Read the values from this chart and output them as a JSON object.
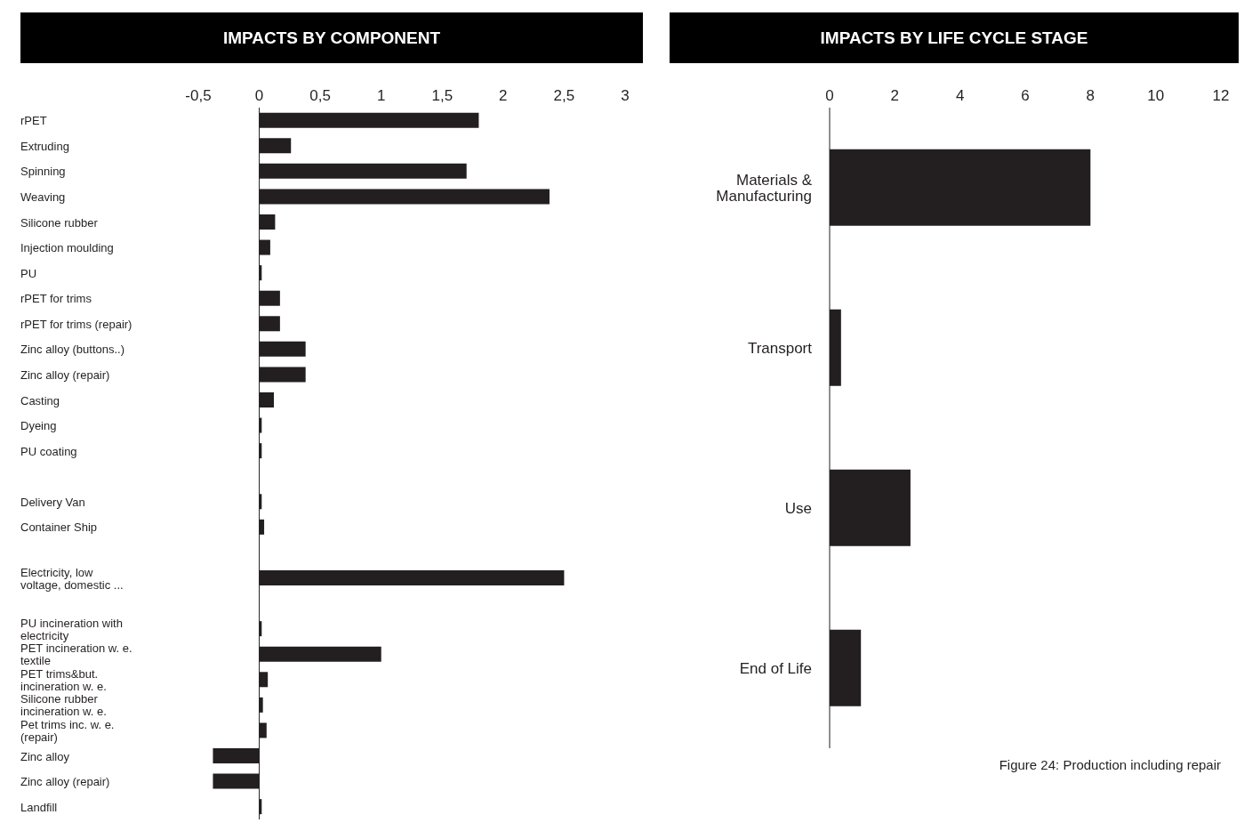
{
  "chart_data": [
    {
      "type": "bar",
      "orientation": "horizontal",
      "title": "IMPACTS BY COMPONENT",
      "categories": [
        "rPET",
        "Extruding",
        "Spinning",
        "Weaving",
        "Silicone rubber",
        "Injection moulding",
        "PU",
        "rPET for trims",
        "rPET for trims (repair)",
        "Zinc alloy (buttons..)",
        "Zinc alloy (repair)",
        "Casting",
        "Dyeing",
        "PU coating",
        null,
        "Delivery Van",
        "Container Ship",
        null,
        "Electricity, low voltage, domestic ...",
        null,
        "PU incineration with electricity",
        "PET incineration w. e. textile",
        "PET trims&but. incineration w. e.",
        "Silicone rubber incineration w. e.",
        "Pet trims inc. w. e. (repair)",
        "Zinc alloy",
        "Zinc alloy (repair)",
        "Landfill"
      ],
      "values": [
        1.8,
        0.26,
        1.7,
        2.38,
        0.13,
        0.09,
        0.02,
        0.17,
        0.17,
        0.38,
        0.38,
        0.12,
        0.02,
        0.02,
        null,
        0.02,
        0.04,
        null,
        2.5,
        null,
        0.02,
        1.0,
        0.07,
        0.03,
        0.06,
        -0.38,
        -0.38,
        0.02
      ],
      "color": "#231f20",
      "xlim": [
        -0.5,
        3
      ],
      "xticks": [
        {
          "value": -0.5,
          "label": "-0,5"
        },
        0,
        {
          "value": 0.5,
          "label": "0,5"
        },
        1,
        {
          "value": 1.5,
          "label": "1,5"
        },
        2,
        {
          "value": 2.5,
          "label": "2,5"
        },
        3
      ],
      "ref_lines": [
        {
          "axis": "x",
          "value": 0,
          "color": "#231f20"
        }
      ]
    },
    {
      "type": "bar",
      "orientation": "horizontal",
      "title": "IMPACTS BY LIFE CYCLE STAGE",
      "categories": [
        "Materials & Manufacturing",
        "Transport",
        "Use",
        "End of Life"
      ],
      "values": [
        8.0,
        0.35,
        2.48,
        0.96
      ],
      "color": "#231f20",
      "xlim": [
        0,
        12
      ],
      "xticks": [
        0,
        2,
        4,
        6,
        8,
        10,
        12
      ],
      "annotations": [
        "Figure 24: Production including repair"
      ]
    }
  ]
}
